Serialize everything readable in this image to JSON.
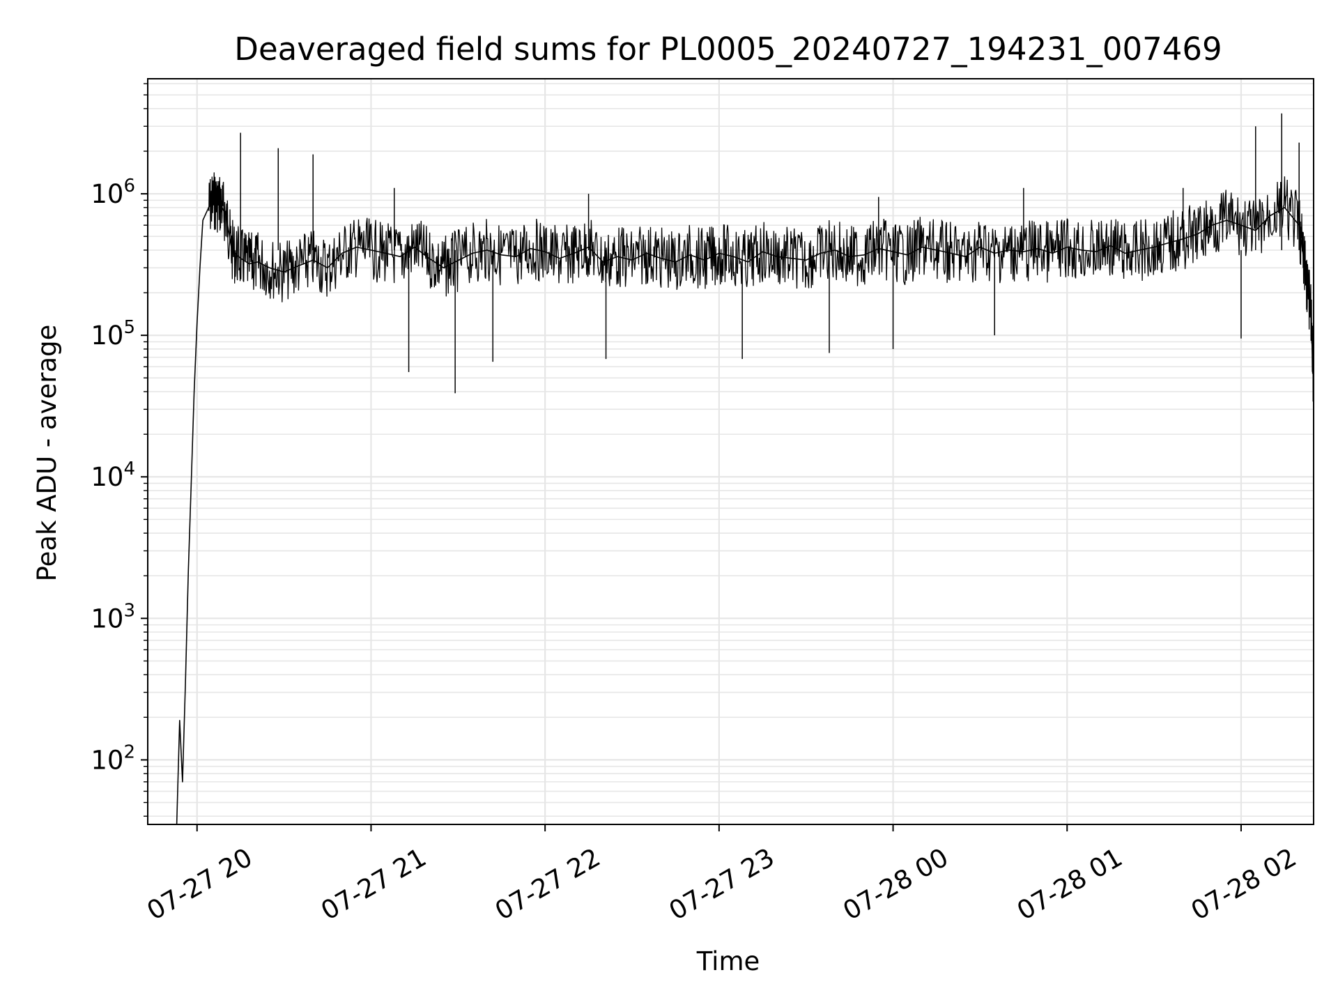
{
  "chart_data": {
    "type": "line",
    "title": "Deaveraged field sums for PL0005_20240727_194231_007469",
    "xlabel": "Time",
    "ylabel": "Peak ADU - average",
    "yscale": "log",
    "ylim": [
      35,
      6500000
    ],
    "xlim": [
      "2024-07-27 19:43",
      "2024-07-28 02:25"
    ],
    "grid": true,
    "line_color": "#000000",
    "grid_color": "#e6e6e6",
    "x_ticks": [
      {
        "value": "2024-07-27 20:00",
        "label": "07-27 20"
      },
      {
        "value": "2024-07-27 21:00",
        "label": "07-27 21"
      },
      {
        "value": "2024-07-27 22:00",
        "label": "07-27 22"
      },
      {
        "value": "2024-07-27 23:00",
        "label": "07-27 23"
      },
      {
        "value": "2024-07-28 00:00",
        "label": "07-28 00"
      },
      {
        "value": "2024-07-28 01:00",
        "label": "07-28 01"
      },
      {
        "value": "2024-07-28 02:00",
        "label": "07-28 02"
      }
    ],
    "y_ticks": [
      {
        "value": 100,
        "base": "10",
        "exp": "2"
      },
      {
        "value": 1000,
        "base": "10",
        "exp": "3"
      },
      {
        "value": 10000,
        "base": "10",
        "exp": "4"
      },
      {
        "value": 100000,
        "base": "10",
        "exp": "5"
      },
      {
        "value": 1000000,
        "base": "10",
        "exp": "6"
      }
    ],
    "series": [
      {
        "x": [
          "2024-07-27 19:53",
          "2024-07-27 19:54",
          "2024-07-27 19:55",
          "2024-07-27 19:56",
          "2024-07-27 19:57",
          "2024-07-27 19:58",
          "2024-07-27 19:59",
          "2024-07-27 20:00",
          "2024-07-27 20:01",
          "2024-07-27 20:02",
          "2024-07-27 20:04",
          "2024-07-27 20:06",
          "2024-07-27 20:08",
          "2024-07-27 20:10",
          "2024-07-27 20:12",
          "2024-07-27 20:15",
          "2024-07-27 20:18",
          "2024-07-27 20:21",
          "2024-07-27 20:25",
          "2024-07-27 20:30",
          "2024-07-27 20:35",
          "2024-07-27 20:40",
          "2024-07-27 20:45",
          "2024-07-27 20:50",
          "2024-07-27 20:55",
          "2024-07-27 21:00",
          "2024-07-27 21:05",
          "2024-07-27 21:10",
          "2024-07-27 21:15",
          "2024-07-27 21:20",
          "2024-07-27 21:25",
          "2024-07-27 21:29",
          "2024-07-27 21:35",
          "2024-07-27 21:40",
          "2024-07-27 21:45",
          "2024-07-27 21:50",
          "2024-07-27 21:55",
          "2024-07-27 22:00",
          "2024-07-27 22:05",
          "2024-07-27 22:10",
          "2024-07-27 22:15",
          "2024-07-27 22:20",
          "2024-07-27 22:25",
          "2024-07-27 22:30",
          "2024-07-27 22:35",
          "2024-07-27 22:40",
          "2024-07-27 22:45",
          "2024-07-27 22:50",
          "2024-07-27 22:55",
          "2024-07-27 23:00",
          "2024-07-27 23:05",
          "2024-07-27 23:10",
          "2024-07-27 23:15",
          "2024-07-27 23:20",
          "2024-07-27 23:25",
          "2024-07-27 23:30",
          "2024-07-27 23:35",
          "2024-07-27 23:40",
          "2024-07-27 23:45",
          "2024-07-27 23:50",
          "2024-07-27 23:55",
          "2024-07-28 00:00",
          "2024-07-28 00:05",
          "2024-07-28 00:10",
          "2024-07-28 00:15",
          "2024-07-28 00:20",
          "2024-07-28 00:25",
          "2024-07-28 00:30",
          "2024-07-28 00:35",
          "2024-07-28 00:40",
          "2024-07-28 00:45",
          "2024-07-28 00:50",
          "2024-07-28 00:55",
          "2024-07-28 01:00",
          "2024-07-28 01:05",
          "2024-07-28 01:10",
          "2024-07-28 01:15",
          "2024-07-28 01:20",
          "2024-07-28 01:25",
          "2024-07-28 01:30",
          "2024-07-28 01:35",
          "2024-07-28 01:40",
          "2024-07-28 01:45",
          "2024-07-28 01:50",
          "2024-07-28 01:55",
          "2024-07-28 02:00",
          "2024-07-28 02:05",
          "2024-07-28 02:10",
          "2024-07-28 02:15",
          "2024-07-28 02:20",
          "2024-07-28 02:22",
          "2024-07-28 02:24",
          "2024-07-28 02:25"
        ],
        "y": [
          35,
          190,
          70,
          350,
          2200,
          9000,
          40000,
          120000,
          300000,
          650000,
          800000,
          900000,
          850000,
          700000,
          400000,
          350000,
          320000,
          330000,
          300000,
          280000,
          310000,
          340000,
          300000,
          380000,
          420000,
          400000,
          380000,
          360000,
          420000,
          350000,
          300000,
          330000,
          380000,
          400000,
          370000,
          360000,
          410000,
          390000,
          350000,
          380000,
          420000,
          330000,
          360000,
          340000,
          380000,
          350000,
          330000,
          370000,
          340000,
          380000,
          360000,
          330000,
          390000,
          360000,
          350000,
          340000,
          380000,
          400000,
          360000,
          370000,
          410000,
          390000,
          370000,
          420000,
          400000,
          380000,
          360000,
          420000,
          380000,
          400000,
          390000,
          410000,
          380000,
          420000,
          400000,
          390000,
          430000,
          380000,
          400000,
          420000,
          450000,
          480000,
          520000,
          600000,
          650000,
          600000,
          550000,
          700000,
          800000,
          600000,
          300000,
          150000,
          45000
        ]
      }
    ],
    "spikes_up": [
      {
        "x": "2024-07-27 20:15",
        "y": 2700000
      },
      {
        "x": "2024-07-27 20:28",
        "y": 2100000
      },
      {
        "x": "2024-07-27 20:40",
        "y": 1900000
      },
      {
        "x": "2024-07-27 21:08",
        "y": 1100000
      },
      {
        "x": "2024-07-27 22:15",
        "y": 1000000
      },
      {
        "x": "2024-07-27 23:55",
        "y": 950000
      },
      {
        "x": "2024-07-28 00:45",
        "y": 1100000
      },
      {
        "x": "2024-07-28 01:40",
        "y": 1100000
      },
      {
        "x": "2024-07-28 02:05",
        "y": 3000000
      },
      {
        "x": "2024-07-28 02:14",
        "y": 3700000
      },
      {
        "x": "2024-07-28 02:20",
        "y": 2300000
      }
    ],
    "spikes_down": [
      {
        "x": "2024-07-27 21:13",
        "y": 55000
      },
      {
        "x": "2024-07-27 21:29",
        "y": 39000
      },
      {
        "x": "2024-07-27 21:42",
        "y": 65000
      },
      {
        "x": "2024-07-27 22:21",
        "y": 68000
      },
      {
        "x": "2024-07-27 23:08",
        "y": 68000
      },
      {
        "x": "2024-07-27 23:38",
        "y": 75000
      },
      {
        "x": "2024-07-28 00:00",
        "y": 80000
      },
      {
        "x": "2024-07-28 00:35",
        "y": 100000
      },
      {
        "x": "2024-07-28 02:00",
        "y": 95000
      }
    ]
  }
}
